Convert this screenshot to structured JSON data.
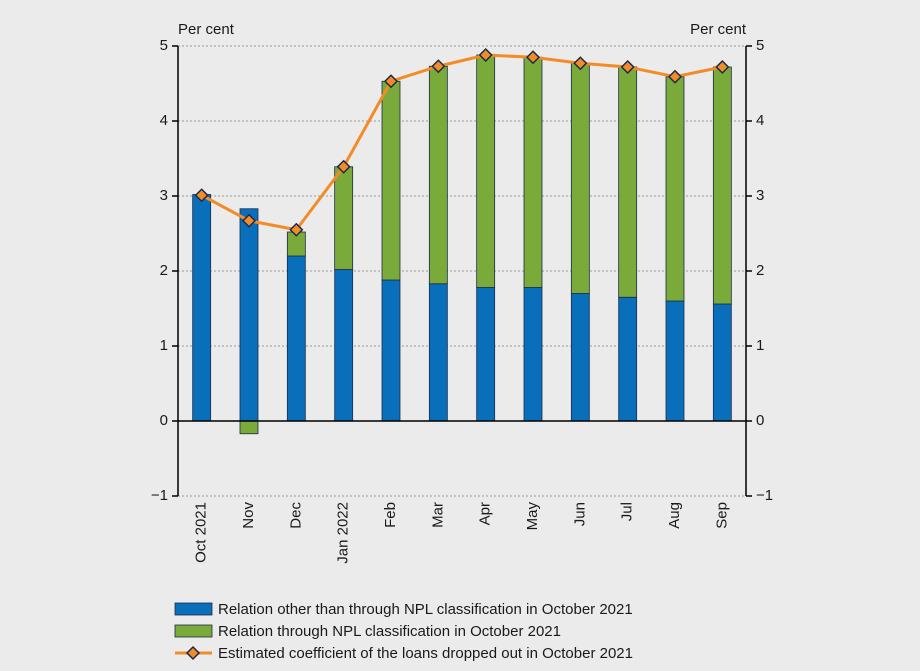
{
  "chart_data": {
    "type": "bar",
    "stacked": true,
    "ylabel": "Per cent",
    "y2label": "Per cent",
    "categories": [
      "Oct 2021",
      "Nov",
      "Dec",
      "Jan 2022",
      "Feb",
      "Mar",
      "Apr",
      "May",
      "Jun",
      "Jul",
      "Aug",
      "Sep"
    ],
    "series": [
      {
        "name": "Relation other than through NPL classification in October 2021",
        "color": "#0a6fba",
        "type": "bar",
        "values": [
          3.02,
          2.83,
          2.2,
          2.02,
          1.88,
          1.83,
          1.78,
          1.78,
          1.7,
          1.65,
          1.6,
          1.56
        ]
      },
      {
        "name": "Relation through NPL classification in October 2021",
        "color": "#7aab3a",
        "type": "bar",
        "values": [
          0,
          -0.17,
          0.32,
          1.37,
          2.65,
          2.9,
          3.1,
          3.07,
          3.07,
          3.07,
          2.99,
          3.16
        ]
      },
      {
        "name": "Estimated coefficient of the loans dropped out in October 2021",
        "color": "#f28c28",
        "type": "line",
        "values": [
          3.01,
          2.67,
          2.55,
          3.39,
          4.53,
          4.73,
          4.88,
          4.85,
          4.77,
          4.72,
          4.59,
          4.72
        ]
      }
    ],
    "ylim": [
      -1,
      5
    ],
    "yticks": [
      {
        "value": -1,
        "label": "−1"
      },
      0,
      1,
      2,
      3,
      4,
      5
    ],
    "y2lim": [
      -1,
      5
    ],
    "y2ticks": [
      {
        "value": -1,
        "label": "−1"
      },
      0,
      1,
      2,
      3,
      4,
      5
    ],
    "grid": true
  }
}
